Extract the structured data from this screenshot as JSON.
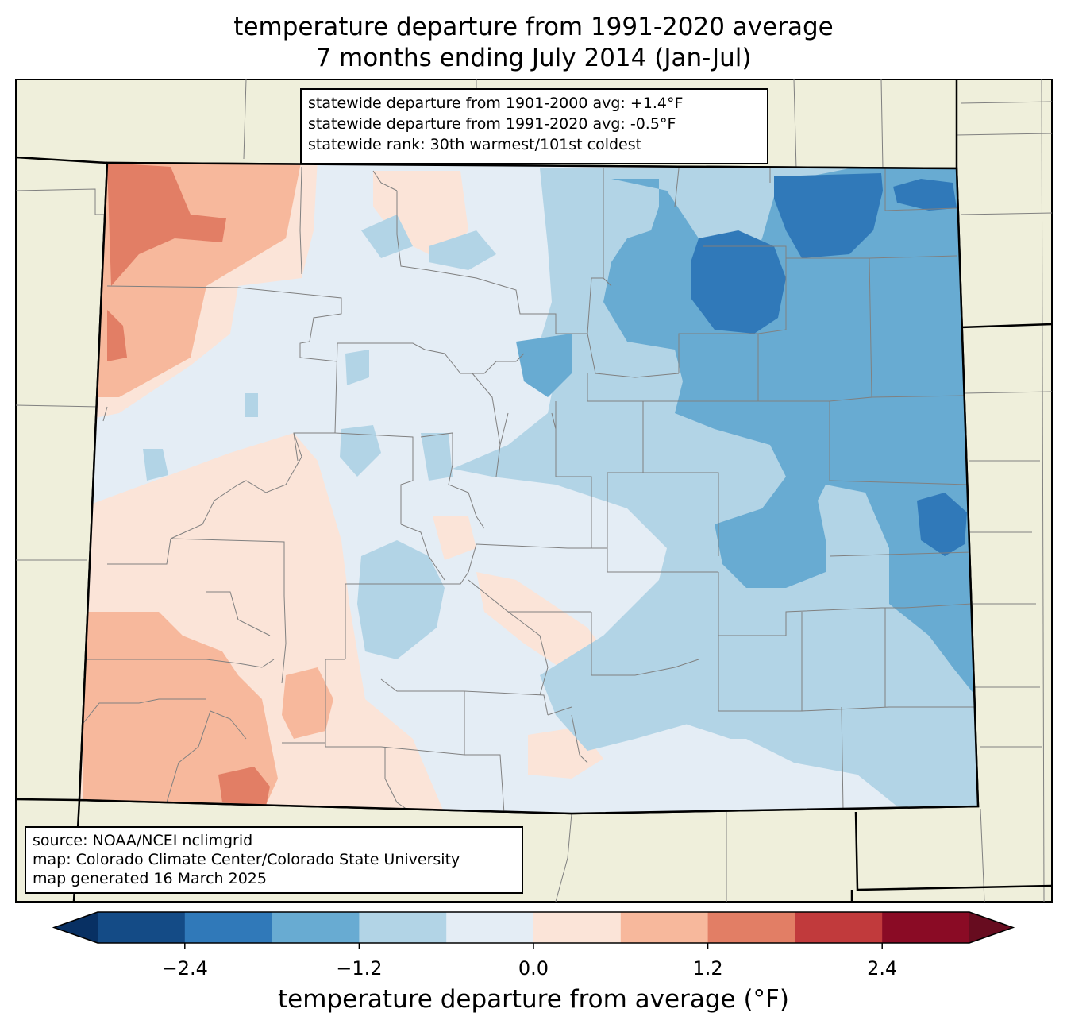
{
  "title_line1": "temperature departure from 1991-2020 average",
  "title_line2": "7 months ending July 2014 (Jan-Jul)",
  "stats": {
    "line1": "statewide departure from 1901-2000 avg: +1.4°F",
    "line2": "statewide departure from 1991-2020 avg: -0.5°F",
    "line3": "statewide rank: 30th warmest/101st coldest"
  },
  "source": {
    "line1": "source: NOAA/NCEI nclimgrid",
    "line2": "map: Colorado Climate Center/Colorado State University",
    "line3": "map generated 16 March 2025"
  },
  "colorbar": {
    "label": "temperature departure from average (°F)",
    "ticks": [
      {
        "value": -2.4,
        "label": "−2.4"
      },
      {
        "value": -1.2,
        "label": "−1.2"
      },
      {
        "value": 0.0,
        "label": "0.0"
      },
      {
        "value": 1.2,
        "label": "1.2"
      },
      {
        "value": 2.4,
        "label": "2.4"
      }
    ],
    "bins": [
      -3.0,
      -2.4,
      -1.8,
      -1.2,
      -0.6,
      0.0,
      0.6,
      1.2,
      1.8,
      2.4,
      3.0
    ],
    "colors": [
      "#144b86",
      "#3079b9",
      "#68abd2",
      "#b2d4e6",
      "#e4edf5",
      "#fbe4d8",
      "#f7b89c",
      "#e27e65",
      "#c13a3c",
      "#8a0b25"
    ],
    "under_color": "#083063",
    "over_color": "#670c1f"
  },
  "palette": {
    "land": "#efefdb",
    "county_lines": "#808080",
    "state_lines": "#000000"
  }
}
